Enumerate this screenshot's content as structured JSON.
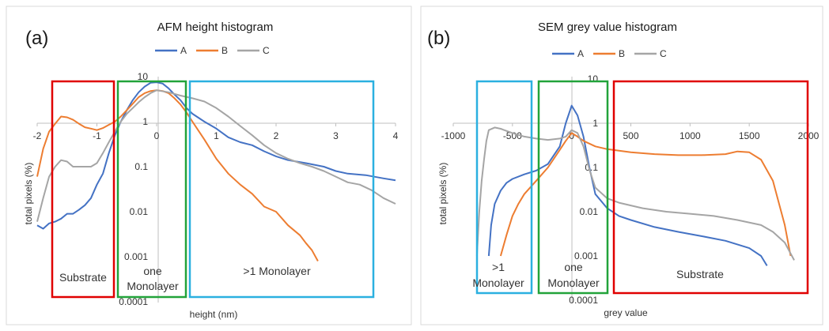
{
  "colors": {
    "A": "#4472C4",
    "B": "#ED7D31",
    "C": "#A5A5A5",
    "red_box": "#E00000",
    "green_box": "#22A33A",
    "blue_box": "#2BB0E0",
    "axis": "#BFBFBF",
    "frame": "#D9D9D9"
  },
  "chart_data": [
    {
      "type": "line",
      "panel_label": "(a)",
      "title": "AFM height histogram",
      "xlabel": "height (nm)",
      "ylabel": "total pixels (%)",
      "xlim": [
        -2,
        4
      ],
      "ylim": [
        0.0001,
        10
      ],
      "y_scale": "log",
      "grid": false,
      "legend": "top",
      "x_ticks": [
        "-2",
        "-1",
        "0",
        "1",
        "2",
        "3",
        "4"
      ],
      "y_ticks": [
        "10",
        "1",
        "0.1",
        "0.01",
        "0.001",
        "0.0001"
      ],
      "series": [
        {
          "name": "A",
          "x": [
            -2.0,
            -1.9,
            -1.8,
            -1.7,
            -1.6,
            -1.5,
            -1.4,
            -1.3,
            -1.2,
            -1.1,
            -1.0,
            -0.9,
            -0.8,
            -0.7,
            -0.6,
            -0.5,
            -0.4,
            -0.3,
            -0.2,
            -0.1,
            0.0,
            0.1,
            0.2,
            0.3,
            0.4,
            0.5,
            0.6,
            0.8,
            1.0,
            1.2,
            1.4,
            1.6,
            1.8,
            2.0,
            2.2,
            2.5,
            2.8,
            3.0,
            3.2,
            3.5,
            3.8,
            4.0
          ],
          "y": [
            0.005,
            0.0042,
            0.0055,
            0.006,
            0.007,
            0.009,
            0.009,
            0.011,
            0.014,
            0.02,
            0.04,
            0.07,
            0.2,
            0.5,
            1.0,
            1.8,
            3.0,
            4.5,
            6.0,
            7.3,
            7.5,
            7.0,
            5.5,
            4.0,
            3.0,
            2.0,
            1.5,
            1.0,
            0.7,
            0.45,
            0.35,
            0.3,
            0.22,
            0.17,
            0.14,
            0.12,
            0.1,
            0.08,
            0.07,
            0.065,
            0.055,
            0.05
          ]
        },
        {
          "name": "B",
          "x": [
            -2.0,
            -1.9,
            -1.8,
            -1.7,
            -1.6,
            -1.5,
            -1.4,
            -1.3,
            -1.2,
            -1.1,
            -1.0,
            -0.9,
            -0.8,
            -0.7,
            -0.6,
            -0.5,
            -0.4,
            -0.3,
            -0.2,
            -0.1,
            0.0,
            0.1,
            0.2,
            0.3,
            0.4,
            0.5,
            0.6,
            0.8,
            1.0,
            1.2,
            1.4,
            1.6,
            1.8,
            2.0,
            2.2,
            2.4,
            2.5,
            2.6,
            2.7
          ],
          "y": [
            0.06,
            0.25,
            0.6,
            0.9,
            1.3,
            1.25,
            1.1,
            0.9,
            0.75,
            0.7,
            0.65,
            0.72,
            0.85,
            1.0,
            1.3,
            1.8,
            2.5,
            3.5,
            4.3,
            4.8,
            5.0,
            4.8,
            4.3,
            3.3,
            2.4,
            1.6,
            1.0,
            0.4,
            0.15,
            0.07,
            0.04,
            0.025,
            0.013,
            0.01,
            0.005,
            0.003,
            0.002,
            0.0014,
            0.0008
          ]
        },
        {
          "name": "C",
          "x": [
            -2.0,
            -1.9,
            -1.8,
            -1.7,
            -1.6,
            -1.5,
            -1.4,
            -1.3,
            -1.2,
            -1.1,
            -1.0,
            -0.9,
            -0.8,
            -0.7,
            -0.6,
            -0.5,
            -0.4,
            -0.3,
            -0.2,
            -0.1,
            0.0,
            0.2,
            0.4,
            0.6,
            0.8,
            1.0,
            1.2,
            1.4,
            1.6,
            1.8,
            2.0,
            2.2,
            2.4,
            2.6,
            2.8,
            3.0,
            3.2,
            3.4,
            3.6,
            3.8,
            4.0
          ],
          "y": [
            0.006,
            0.02,
            0.06,
            0.1,
            0.14,
            0.13,
            0.1,
            0.1,
            0.1,
            0.1,
            0.12,
            0.2,
            0.35,
            0.6,
            1.0,
            1.5,
            2.0,
            2.7,
            3.5,
            4.3,
            5.0,
            4.5,
            3.8,
            3.3,
            2.8,
            2.0,
            1.3,
            0.8,
            0.5,
            0.3,
            0.2,
            0.15,
            0.12,
            0.1,
            0.08,
            0.06,
            0.045,
            0.04,
            0.03,
            0.02,
            0.015
          ]
        }
      ],
      "annotations": [
        "Substrate",
        "one",
        "Monolayer",
        ">1 Monolayer"
      ]
    },
    {
      "type": "line",
      "panel_label": "(b)",
      "title": "SEM grey value histogram",
      "xlabel": "grey value",
      "ylabel": "total pixels (%)",
      "xlim": [
        -1000,
        2000
      ],
      "ylim": [
        0.0001,
        10
      ],
      "y_scale": "log",
      "grid": false,
      "legend": "top",
      "x_ticks": [
        "-1000",
        "-500",
        "0",
        "500",
        "1000",
        "1500",
        "2000"
      ],
      "y_ticks": [
        "10",
        "1",
        "0.1",
        "0.01",
        "0.001",
        "0.0001"
      ],
      "series": [
        {
          "name": "A",
          "x": [
            -700,
            -680,
            -650,
            -600,
            -550,
            -500,
            -400,
            -300,
            -200,
            -100,
            -50,
            0,
            50,
            100,
            150,
            200,
            300,
            400,
            500,
            700,
            900,
            1100,
            1300,
            1500,
            1600,
            1650
          ],
          "y": [
            0.001,
            0.005,
            0.015,
            0.03,
            0.045,
            0.055,
            0.07,
            0.085,
            0.12,
            0.3,
            1.0,
            2.5,
            1.5,
            0.5,
            0.1,
            0.025,
            0.012,
            0.008,
            0.0065,
            0.0045,
            0.0035,
            0.0028,
            0.0022,
            0.0015,
            0.001,
            0.0006
          ]
        },
        {
          "name": "B",
          "x": [
            -600,
            -550,
            -500,
            -450,
            -400,
            -300,
            -200,
            -100,
            -50,
            0,
            50,
            100,
            200,
            300,
            500,
            700,
            900,
            1100,
            1300,
            1400,
            1500,
            1600,
            1700,
            1800,
            1850
          ],
          "y": [
            0.001,
            0.003,
            0.008,
            0.015,
            0.025,
            0.05,
            0.1,
            0.25,
            0.4,
            0.6,
            0.5,
            0.4,
            0.3,
            0.26,
            0.22,
            0.2,
            0.19,
            0.19,
            0.2,
            0.23,
            0.22,
            0.15,
            0.05,
            0.005,
            0.001
          ]
        },
        {
          "name": "C",
          "x": [
            -800,
            -780,
            -760,
            -740,
            -720,
            -700,
            -650,
            -600,
            -500,
            -400,
            -300,
            -200,
            -100,
            -50,
            0,
            50,
            100,
            150,
            200,
            300,
            400,
            600,
            800,
            1000,
            1200,
            1400,
            1600,
            1700,
            1800,
            1880
          ],
          "y": [
            0.001,
            0.01,
            0.05,
            0.15,
            0.4,
            0.7,
            0.8,
            0.75,
            0.6,
            0.5,
            0.45,
            0.42,
            0.45,
            0.5,
            0.7,
            0.6,
            0.3,
            0.09,
            0.035,
            0.02,
            0.016,
            0.012,
            0.01,
            0.009,
            0.008,
            0.0065,
            0.005,
            0.0035,
            0.002,
            0.0008
          ]
        }
      ],
      "annotations": [
        ">1",
        "Monolayer",
        "one",
        "Monolayer",
        "Substrate"
      ]
    }
  ]
}
